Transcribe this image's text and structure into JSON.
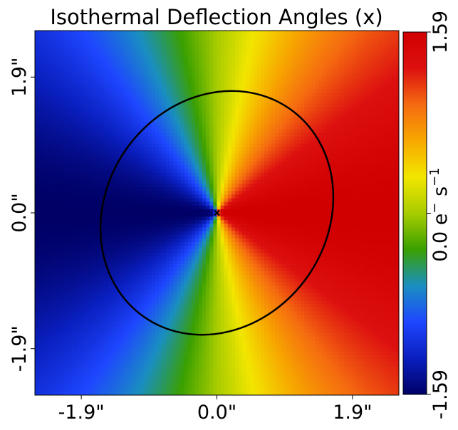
{
  "chart_data": {
    "type": "heatmap",
    "title": "Isothermal Deflection Angles (x)",
    "xlabel": "",
    "ylabel": "",
    "x_range": [
      -2.55,
      2.55
    ],
    "y_range": [
      -2.55,
      2.55
    ],
    "x_ticks": [
      {
        "value": -1.9,
        "label": "-1.9\""
      },
      {
        "value": 0.0,
        "label": "0.0\""
      },
      {
        "value": 1.9,
        "label": "1.9\""
      }
    ],
    "y_ticks": [
      {
        "value": -1.9,
        "label": "-1.9\""
      },
      {
        "value": 0.0,
        "label": "0.0\""
      },
      {
        "value": 1.9,
        "label": "1.9\""
      }
    ],
    "value_model": "deflection_x = 1.59 * x / sqrt(x^2 + y^2)",
    "value_range": [
      -1.59,
      1.59
    ],
    "grid_resolution": 100,
    "colormap": [
      "#000066",
      "#0a1fbf",
      "#1e46ff",
      "#1a8fc0",
      "#3aa000",
      "#a8cc00",
      "#f2e600",
      "#f7a800",
      "#f56a10",
      "#dd1010",
      "#d00000"
    ],
    "critical_curve": {
      "type": "ellipse",
      "center": [
        0.0,
        0.0
      ],
      "semi_major": 1.78,
      "semi_minor": 1.55,
      "rotation_deg": 55,
      "color": "#000000"
    },
    "center_marker": {
      "x": 0.0,
      "y": 0.0,
      "symbol": "x",
      "color": "#000000"
    },
    "colorbar": {
      "min_label": "-1.59",
      "mid_label": "0.0 e",
      "mid_superscript_1": "−",
      "mid_unit": " s",
      "mid_superscript_2": "−1",
      "max_label": "1.59",
      "orientation": "vertical",
      "position": "right"
    },
    "grid": false,
    "legend": "none"
  }
}
